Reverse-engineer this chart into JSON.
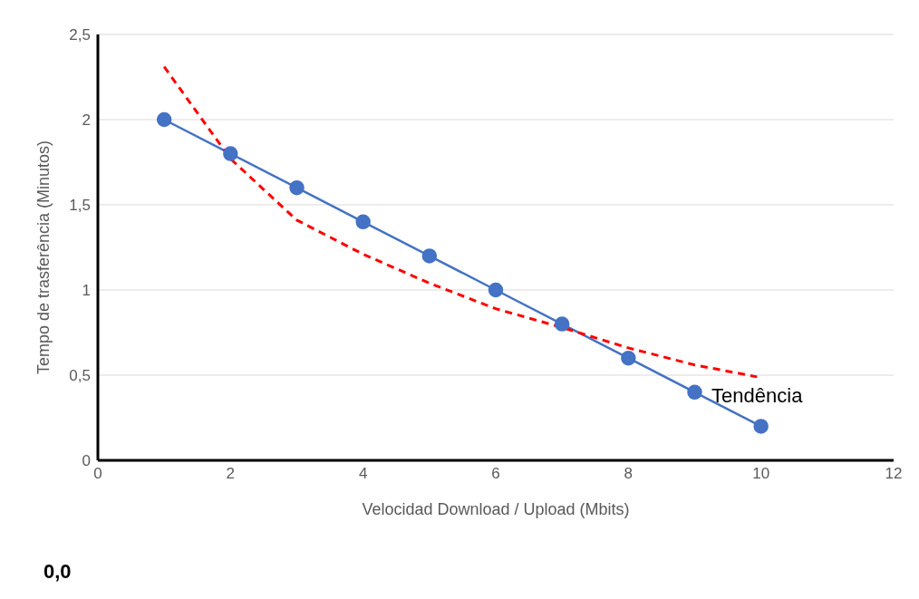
{
  "chart_data": {
    "type": "line",
    "xlabel": "Velocidad Download / Upload (Mbits)",
    "ylabel": "Tempo de trasferência (Minutos)",
    "x": [
      1,
      2,
      3,
      4,
      5,
      6,
      7,
      8,
      9,
      10
    ],
    "series": [
      {
        "color": "#4472c4",
        "values": [
          2,
          1.8,
          1.6,
          1.4,
          1.2,
          1,
          0.8,
          0.6,
          0.4,
          0.2
        ],
        "marker": "circle",
        "line_style": "solid"
      },
      {
        "type": "line",
        "color": "#ff0000",
        "x": [
          1,
          2,
          3,
          4,
          5,
          6,
          7,
          8,
          9,
          9.94
        ],
        "values": [
          2.31,
          1.77,
          1.41,
          1.21,
          1.04,
          0.89,
          0.78,
          0.66,
          0.56,
          0.49
        ],
        "marker": "none",
        "line_style": "dashed"
      }
    ],
    "xlim": [
      0,
      12
    ],
    "xticks": [
      0,
      2,
      4,
      6,
      8,
      10,
      12
    ],
    "ylim": [
      0,
      2.5
    ],
    "yticks": [
      0,
      {
        "value": 0.5,
        "label": "0,5"
      },
      1,
      {
        "value": 1.5,
        "label": "1,5"
      },
      2,
      {
        "value": 2.5,
        "label": "2,5"
      }
    ],
    "grid": "y",
    "legend": false,
    "annotations": [
      {
        "text": "Tendência",
        "x": 9.94,
        "y": 0.49
      },
      "0,0"
    ]
  }
}
